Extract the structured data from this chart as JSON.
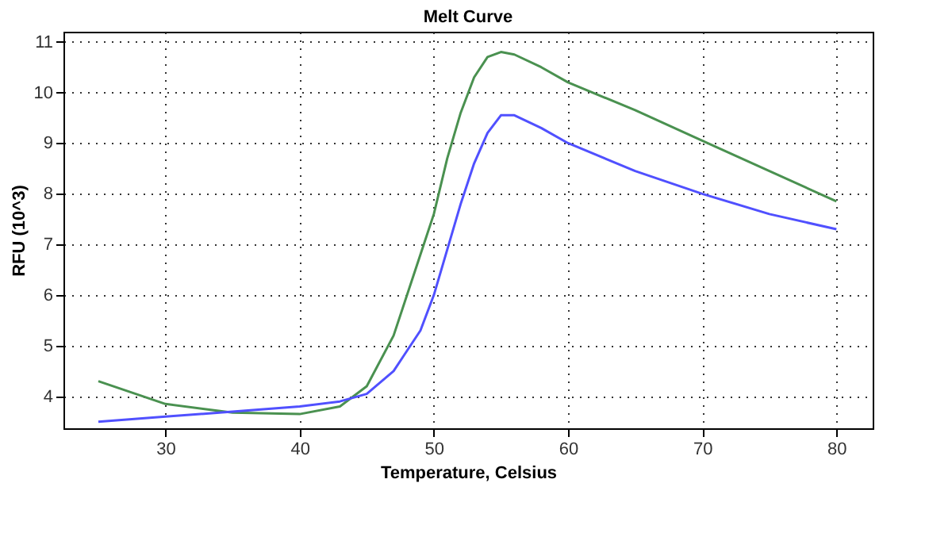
{
  "chart_data": {
    "type": "line",
    "title": "Melt Curve",
    "xlabel": "Temperature, Celsius",
    "ylabel": "RFU (10^3)",
    "x": [
      25,
      30,
      35,
      40,
      43,
      45,
      47,
      49,
      50,
      51,
      52,
      53,
      54,
      55,
      56,
      58,
      60,
      65,
      70,
      75,
      80
    ],
    "series": [
      {
        "color": "#4a9150",
        "values": [
          4.3,
          3.85,
          3.68,
          3.65,
          3.8,
          4.2,
          5.2,
          6.8,
          7.6,
          8.7,
          9.6,
          10.3,
          10.7,
          10.8,
          10.75,
          10.5,
          10.2,
          9.65,
          9.05,
          8.45,
          7.85
        ]
      },
      {
        "color": "#5050ff",
        "values": [
          3.5,
          3.6,
          3.7,
          3.8,
          3.9,
          4.05,
          4.5,
          5.3,
          6.0,
          6.9,
          7.8,
          8.6,
          9.2,
          9.55,
          9.55,
          9.3,
          9.0,
          8.45,
          8.0,
          7.6,
          7.3
        ]
      }
    ],
    "xlim": [
      22.4,
      82.7
    ],
    "ylim": [
      3.37,
      11.2
    ],
    "xticks": [
      30,
      40,
      50,
      60,
      70,
      80
    ],
    "yticks": [
      4,
      5,
      6,
      7,
      8,
      9,
      10,
      11
    ],
    "grid": true,
    "marker": "none",
    "line_style": "solid"
  }
}
